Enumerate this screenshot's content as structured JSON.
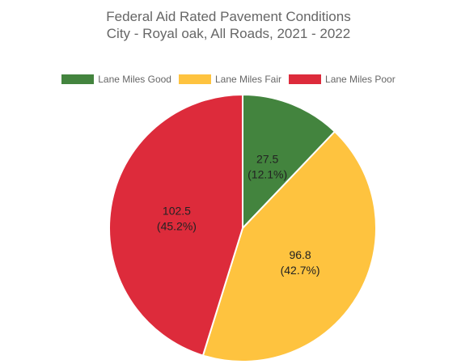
{
  "chart_data": {
    "type": "pie",
    "title": [
      "Federal Aid Rated Pavement Conditions",
      "City - Royal oak, All Roads, 2021 - 2022"
    ],
    "legend_position": "top",
    "categories": [
      "Lane Miles Good",
      "Lane Miles Fair",
      "Lane Miles Poor"
    ],
    "values": [
      27.5,
      96.8,
      102.5
    ],
    "percent_labels": [
      "(12.1%)",
      "(42.7%)",
      "(45.2%)"
    ],
    "value_labels": [
      "27.5",
      "96.8",
      "102.5"
    ],
    "colors": [
      "#43843e",
      "#fec33f",
      "#dd2b3b"
    ]
  }
}
